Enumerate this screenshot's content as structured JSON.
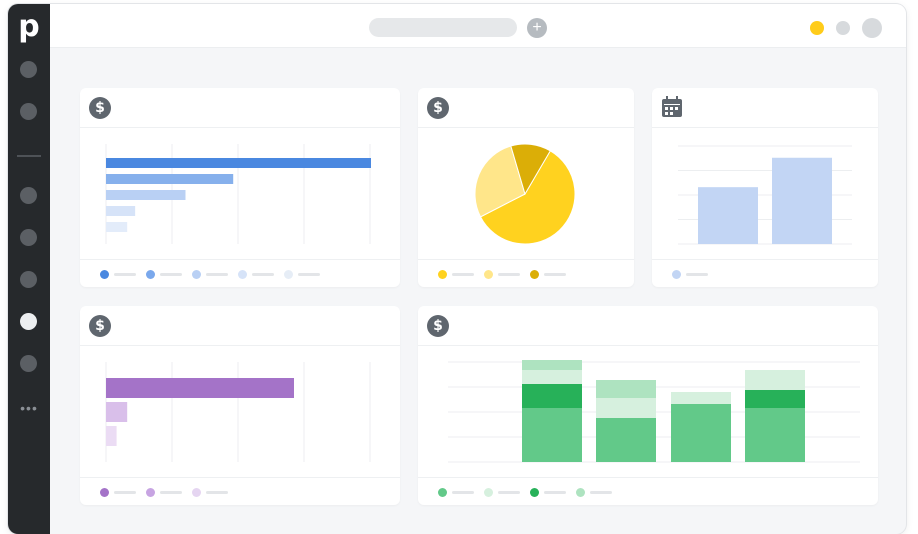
{
  "app": {
    "logo_letter": "p"
  },
  "sidebar": {
    "items": [
      {
        "id": "nav-1"
      },
      {
        "id": "nav-2"
      },
      {
        "id": "nav-3"
      },
      {
        "id": "nav-4"
      },
      {
        "id": "nav-5"
      },
      {
        "id": "nav-6",
        "active": true
      },
      {
        "id": "nav-7"
      }
    ],
    "more_label": "•••"
  },
  "topbar": {
    "add_label": "+"
  },
  "colors": {
    "sidebar": "#26292c",
    "accent_yellow": "#ffcc1a",
    "blue": "#4a88e0",
    "purple": "#a473c8",
    "green": "#27b159",
    "icon_grey": "#5f666e"
  },
  "cards": {
    "c1": {
      "icon": "dollar-icon",
      "icon_text": "$",
      "chart_data": {
        "type": "bar",
        "orientation": "horizontal",
        "values": [
          100,
          48,
          30,
          11,
          8
        ],
        "colors": [
          "#4a88e0",
          "#86b0ec",
          "#b9d0f4",
          "#d6e3f8",
          "#e3ecfa"
        ]
      },
      "legend": [
        "#4a88e0",
        "#7aa8ec",
        "#b9d0f4",
        "#d6e3f8",
        "#e6edf6"
      ]
    },
    "c2": {
      "icon": "dollar-icon",
      "icon_text": "$",
      "chart_data": {
        "type": "pie",
        "values": [
          59,
          28,
          13
        ],
        "colors": [
          "#ffd21f",
          "#ffe68a",
          "#dbae07"
        ]
      },
      "legend": [
        "#ffd21f",
        "#ffe68a",
        "#dbae07"
      ]
    },
    "c3": {
      "icon": "calendar-icon",
      "chart_data": {
        "type": "bar",
        "values": [
          58,
          88
        ],
        "color": "#c2d5f4"
      },
      "legend": [
        "#c2d5f4"
      ]
    },
    "c4": {
      "icon": "dollar-icon",
      "icon_text": "$",
      "chart_data": {
        "type": "bar",
        "orientation": "horizontal",
        "values": [
          71,
          8,
          4
        ],
        "colors": [
          "#a473c8",
          "#d9bfea",
          "#ebdcf4"
        ]
      },
      "legend": [
        "#a473c8",
        "#c7a4e2",
        "#e5d5f1"
      ]
    },
    "c5": {
      "icon": "dollar-icon",
      "icon_text": "$",
      "chart_data": {
        "type": "bar",
        "stacked": true,
        "series": [
          {
            "color": "#62c989",
            "values": [
              54,
              44,
              58,
              54
            ]
          },
          {
            "color": "#27b159",
            "values": [
              24,
              0,
              0,
              18
            ]
          },
          {
            "color": "#d6f0de",
            "values": [
              14,
              20,
              12,
              20
            ]
          },
          {
            "color": "#aee3c0",
            "values": [
              10,
              18,
              0,
              0
            ]
          }
        ]
      },
      "legend": [
        "#62c989",
        "#d6f0de",
        "#27b159",
        "#aee3c0"
      ]
    }
  }
}
